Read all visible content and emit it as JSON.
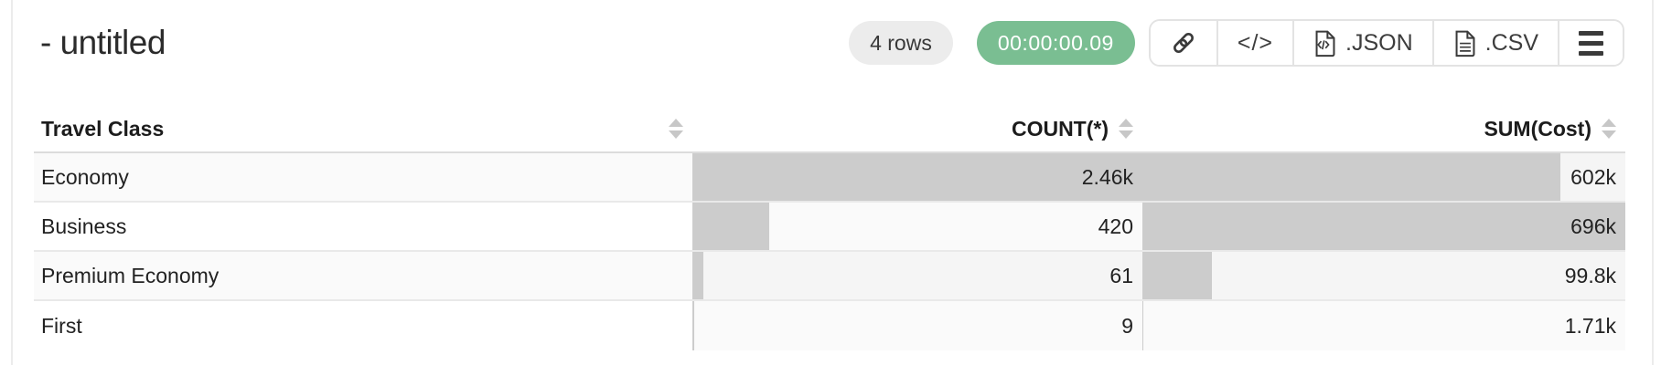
{
  "header": {
    "title": "- untitled",
    "rows_badge": "4 rows",
    "timer": "00:00:00.09",
    "buttons": {
      "copy_link": "copy-link",
      "show_code": "show-code",
      "export_json_label": ".JSON",
      "export_csv_label": ".CSV",
      "menu": "menu"
    }
  },
  "colors": {
    "timer_green": "#7abe92",
    "bar_gray": "#cccccc",
    "rows_badge_bg": "#ececec",
    "stripe": "#fafafa"
  },
  "table": {
    "columns": [
      {
        "label": "Travel Class",
        "align": "left"
      },
      {
        "label": "COUNT(*)",
        "align": "right"
      },
      {
        "label": "SUM(Cost)",
        "align": "right"
      }
    ],
    "rows": [
      {
        "travel_class": "Economy",
        "count": 2460,
        "count_label": "2.46k",
        "sum": 602000,
        "sum_label": "602k"
      },
      {
        "travel_class": "Business",
        "count": 420,
        "count_label": "420",
        "sum": 696000,
        "sum_label": "696k"
      },
      {
        "travel_class": "Premium Economy",
        "count": 61,
        "count_label": "61",
        "sum": 99800,
        "sum_label": "99.8k"
      },
      {
        "travel_class": "First",
        "count": 9,
        "count_label": "9",
        "sum": 1710,
        "sum_label": "1.71k"
      }
    ]
  },
  "chart_data": {
    "type": "table",
    "title": "- untitled",
    "categories": [
      "Economy",
      "Business",
      "Premium Economy",
      "First"
    ],
    "series": [
      {
        "name": "COUNT(*)",
        "values": [
          2460,
          420,
          61,
          9
        ]
      },
      {
        "name": "SUM(Cost)",
        "values": [
          602000,
          696000,
          99800,
          1710
        ]
      }
    ],
    "notes": "in-cell horizontal bars scaled to column max"
  }
}
